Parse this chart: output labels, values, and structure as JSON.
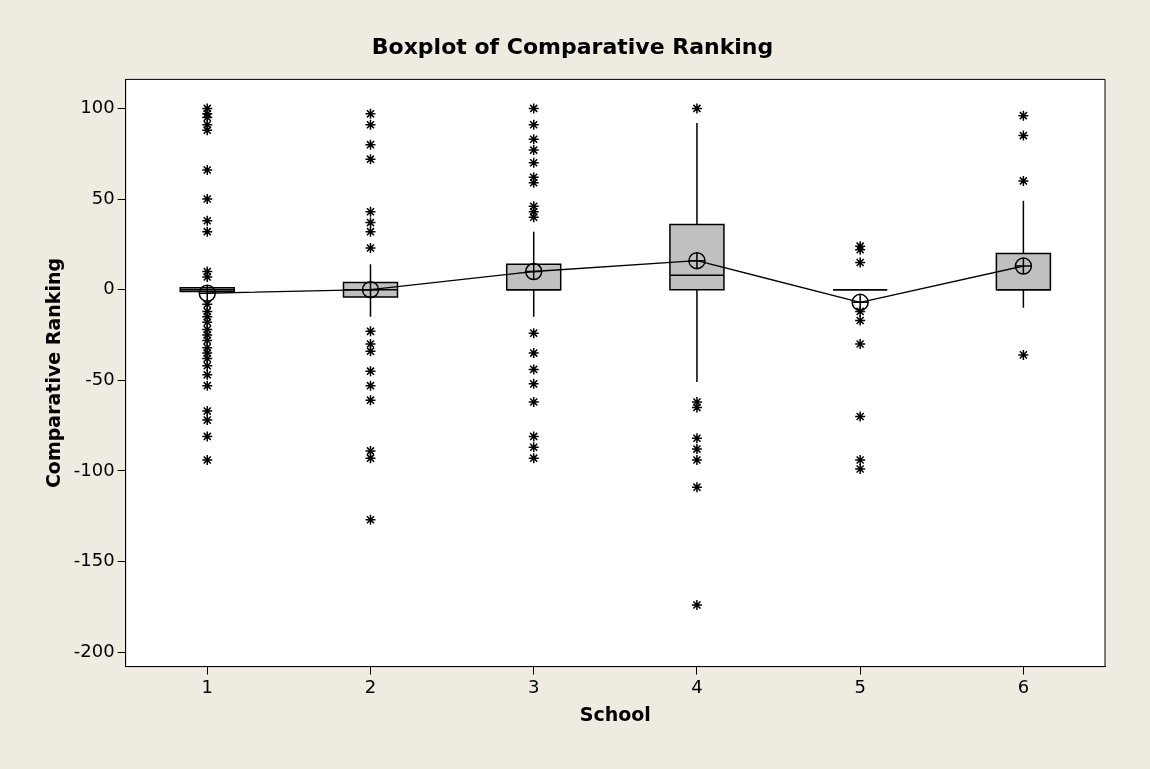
{
  "chart_data": {
    "type": "box",
    "title": "Boxplot of Comparative Ranking",
    "xlabel": "School",
    "ylabel": "Comparative Ranking",
    "categories": [
      "1",
      "2",
      "3",
      "4",
      "5",
      "6"
    ],
    "series": [
      {
        "type": "line",
        "color": "#000000",
        "values": [
          -2,
          0,
          10,
          16,
          -7,
          13
        ]
      }
    ],
    "colors": [
      "#c0c0c0",
      "#c0c0c0",
      "#c0c0c0",
      "#c0c0c0",
      "#000000",
      "#c0c0c0"
    ],
    "ylim": [
      -208,
      116
    ],
    "yticks": [
      -200,
      -150,
      -100,
      -50,
      0,
      50,
      100
    ],
    "grid": false,
    "legend": false,
    "boxes": [
      {
        "low": -1,
        "q1": -1,
        "median": 0,
        "q3": 1,
        "high": 1,
        "mean": -2,
        "outliers": [
          100,
          97,
          95,
          91,
          88,
          66,
          50,
          38,
          32,
          10,
          7,
          -8,
          -12,
          -15,
          -18,
          -22,
          -25,
          -28,
          -32,
          -35,
          -38,
          -42,
          -47,
          -53,
          -67,
          -72,
          -81,
          -94
        ]
      },
      {
        "low": -15,
        "q1": -4,
        "median": 0,
        "q3": 4,
        "high": 14,
        "mean": 0,
        "outliers": [
          97,
          91,
          80,
          72,
          43,
          37,
          32,
          23,
          -23,
          -30,
          -34,
          -45,
          -53,
          -61,
          -89,
          -93,
          -127
        ]
      },
      {
        "low": -15,
        "q1": 0,
        "median": 0,
        "q3": 14,
        "high": 32,
        "mean": 10,
        "outliers": [
          100,
          91,
          83,
          77,
          70,
          62,
          59,
          46,
          43,
          40,
          -24,
          -35,
          -44,
          -52,
          -62,
          -81,
          -87,
          -93
        ]
      },
      {
        "low": -51,
        "q1": 0,
        "median": 8,
        "q3": 36,
        "high": 92,
        "mean": 16,
        "outliers": [
          100,
          -62,
          -65,
          -82,
          -88,
          -94,
          -109,
          -174
        ]
      },
      {
        "low": 0,
        "q1": 0,
        "median": 0,
        "q3": 0,
        "high": 0,
        "mean": -7,
        "outliers": [
          24,
          22,
          15,
          -12,
          -17,
          -30,
          -70,
          -94,
          -99
        ]
      },
      {
        "low": -10,
        "q1": 0,
        "median": 0,
        "q3": 20,
        "high": 49,
        "mean": 13,
        "outliers": [
          96,
          85,
          60,
          -36
        ]
      }
    ]
  }
}
